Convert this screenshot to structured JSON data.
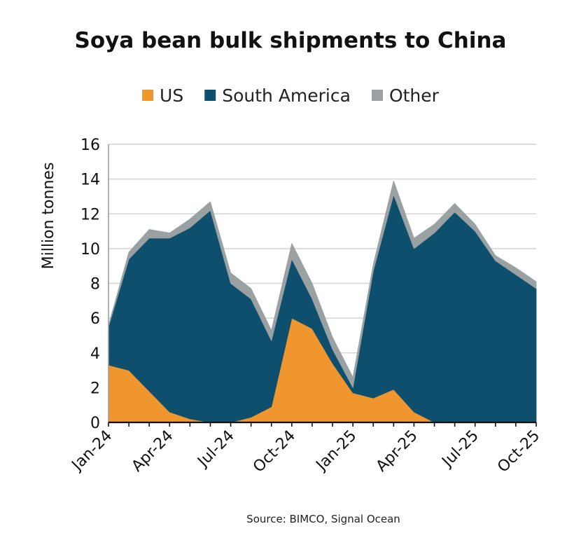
{
  "chart_data": {
    "type": "area",
    "stacked": true,
    "title": "Soya bean bulk shipments to China",
    "ylabel": "Million tonnes",
    "ylim": [
      0,
      16
    ],
    "yticks": [
      "0",
      "2",
      "4",
      "6",
      "8",
      "10",
      "12",
      "14",
      "16"
    ],
    "x": [
      "Jan-24",
      "Feb-24",
      "Mar-24",
      "Apr-24",
      "May-24",
      "Jun-24",
      "Jul-24",
      "Aug-24",
      "Sep-24",
      "Oct-24",
      "Nov-24",
      "Dec-24",
      "Jan-25",
      "Feb-25",
      "Mar-25",
      "Apr-25",
      "May-25",
      "Jun-25",
      "Jul-25",
      "Aug-25",
      "Sep-25",
      "Oct-25"
    ],
    "xticks": [
      "Jan-24",
      "Apr-24",
      "Jul-24",
      "Oct-24",
      "Jan-25",
      "Apr-25",
      "Jul-25",
      "Oct-25"
    ],
    "grid": true,
    "legend_position": "top",
    "series": [
      {
        "name": "US",
        "color": "#f0962e",
        "values": [
          3.3,
          3.0,
          1.8,
          0.6,
          0.2,
          0.0,
          0.0,
          0.3,
          0.9,
          6.0,
          5.4,
          3.4,
          1.7,
          1.4,
          1.9,
          0.6,
          0.0,
          0.0,
          0.0,
          0.0,
          0.0,
          0.0
        ]
      },
      {
        "name": "South America",
        "color": "#0f4f6e",
        "values": [
          2.2,
          6.4,
          8.8,
          10.0,
          11.0,
          12.2,
          8.0,
          6.8,
          3.8,
          3.4,
          1.7,
          0.8,
          0.3,
          7.3,
          11.2,
          9.4,
          10.9,
          12.1,
          11.0,
          9.3,
          8.5,
          7.7
        ]
      },
      {
        "name": "Other",
        "color": "#9aa1a3",
        "values": [
          0.1,
          0.4,
          0.5,
          0.3,
          0.5,
          0.5,
          0.6,
          0.6,
          0.6,
          0.9,
          0.9,
          0.7,
          0.6,
          0.4,
          0.8,
          0.6,
          0.5,
          0.5,
          0.4,
          0.3,
          0.4,
          0.4
        ]
      }
    ],
    "source": "Source: BIMCO, Signal Ocean"
  }
}
